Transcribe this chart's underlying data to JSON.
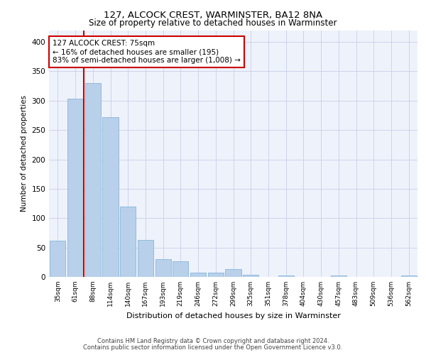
{
  "title1": "127, ALCOCK CREST, WARMINSTER, BA12 8NA",
  "title2": "Size of property relative to detached houses in Warminster",
  "xlabel": "Distribution of detached houses by size in Warminster",
  "ylabel": "Number of detached properties",
  "categories": [
    "35sqm",
    "61sqm",
    "88sqm",
    "114sqm",
    "140sqm",
    "167sqm",
    "193sqm",
    "219sqm",
    "246sqm",
    "272sqm",
    "299sqm",
    "325sqm",
    "351sqm",
    "378sqm",
    "404sqm",
    "430sqm",
    "457sqm",
    "483sqm",
    "509sqm",
    "536sqm",
    "562sqm"
  ],
  "values": [
    62,
    303,
    330,
    272,
    120,
    63,
    30,
    27,
    7,
    7,
    13,
    4,
    0,
    3,
    0,
    0,
    3,
    0,
    0,
    0,
    3
  ],
  "bar_color": "#b8d0ea",
  "bar_edge_color": "#7aadd4",
  "vline_x": 1.5,
  "vline_color": "#cc0000",
  "annotation_text": "127 ALCOCK CREST: 75sqm\n← 16% of detached houses are smaller (195)\n83% of semi-detached houses are larger (1,008) →",
  "annotation_box_color": "#ffffff",
  "annotation_box_edge": "#cc0000",
  "ylim": [
    0,
    420
  ],
  "yticks": [
    0,
    50,
    100,
    150,
    200,
    250,
    300,
    350,
    400
  ],
  "background_color": "#eef2fb",
  "footer_line1": "Contains HM Land Registry data © Crown copyright and database right 2024.",
  "footer_line2": "Contains public sector information licensed under the Open Government Licence v3.0."
}
